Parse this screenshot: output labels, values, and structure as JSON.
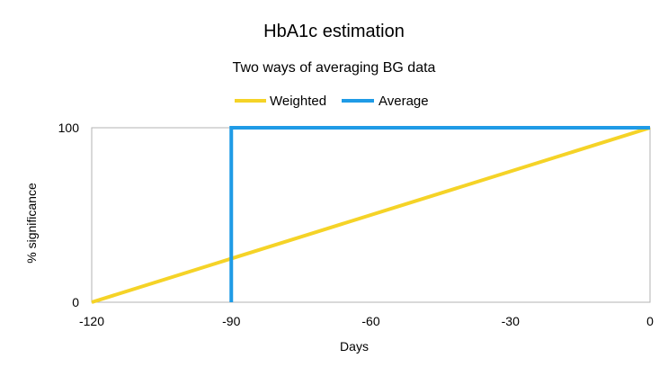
{
  "chart_data": {
    "type": "line",
    "title": "HbA1c estimation",
    "subtitle": "Two ways of averaging BG data",
    "xlabel": "Days",
    "ylabel": "% significance",
    "xlim": [
      -120,
      0
    ],
    "ylim": [
      0,
      100
    ],
    "x_ticks": [
      -120,
      -90,
      -60,
      -30,
      0
    ],
    "y_ticks": [
      0,
      100
    ],
    "grid": false,
    "legend_position": "top",
    "series": [
      {
        "name": "Weighted",
        "color": "#f5d327",
        "points": [
          [
            -120,
            0
          ],
          [
            0,
            100
          ]
        ]
      },
      {
        "name": "Average",
        "color": "#1f9be6",
        "points": [
          [
            -90,
            0
          ],
          [
            -90,
            100
          ],
          [
            0,
            100
          ]
        ]
      }
    ]
  }
}
